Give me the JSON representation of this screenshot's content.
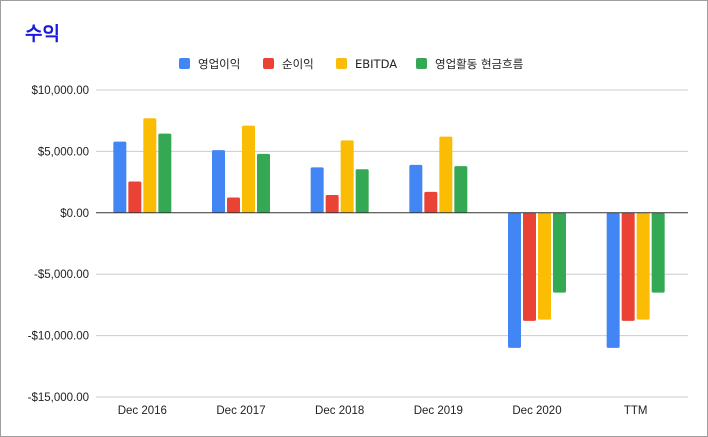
{
  "chart_data": {
    "type": "bar",
    "title": "수익",
    "xlabel": "",
    "ylabel": "",
    "categories": [
      "Dec 2016",
      "Dec 2017",
      "Dec 2018",
      "Dec 2019",
      "Dec 2020",
      "TTM"
    ],
    "series": [
      {
        "name": "영업이익",
        "color": "#4285f4",
        "values": [
          5800,
          5100,
          3700,
          3900,
          -11000,
          -11000
        ]
      },
      {
        "name": "순이익",
        "color": "#ea4335",
        "values": [
          2550,
          1250,
          1450,
          1700,
          -8800,
          -8800
        ]
      },
      {
        "name": "EBITDA",
        "color": "#fbbc04",
        "values": [
          7700,
          7100,
          5900,
          6200,
          -8700,
          -8700
        ]
      },
      {
        "name": "영업활동 현금흐름",
        "color": "#34a853",
        "values": [
          6450,
          4800,
          3550,
          3800,
          -6500,
          -6500
        ]
      }
    ],
    "ylim": [
      -15000,
      10000
    ],
    "yticks": [
      10000,
      5000,
      0,
      -5000,
      -10000,
      -15000
    ],
    "ytick_labels": [
      "$10,000.00",
      "$5,000.00",
      "$0.00",
      "-$5,000.00",
      "-$10,000.00",
      "-$15,000.00"
    ],
    "grid": true,
    "legend_position": "top"
  }
}
